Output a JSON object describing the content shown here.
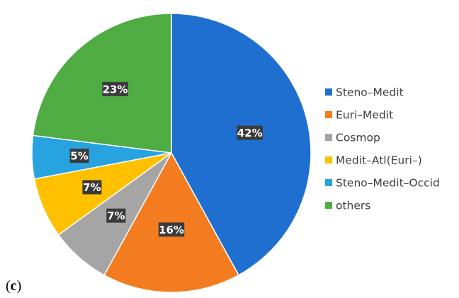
{
  "panel_label": {
    "open": "(",
    "letter": "c",
    "close": ")"
  },
  "chart_data": {
    "type": "pie",
    "title": "",
    "legend_position": "right",
    "slices": [
      {
        "label": "Steno–Medit",
        "value": 42,
        "display": "42%",
        "color": "#1f6fd0"
      },
      {
        "label": "Euri–Medit",
        "value": 16,
        "display": "16%",
        "color": "#f47c20"
      },
      {
        "label": "Cosmop",
        "value": 7,
        "display": "7%",
        "color": "#a5a5a5"
      },
      {
        "label": "Medit–Atl(Euri–)",
        "value": 7,
        "display": "7%",
        "color": "#ffc000"
      },
      {
        "label": "Steno–Medit–Occid",
        "value": 5,
        "display": "5%",
        "color": "#27a3e0"
      },
      {
        "label": "others",
        "value": 23,
        "display": "23%",
        "color": "#4eac43"
      }
    ]
  }
}
